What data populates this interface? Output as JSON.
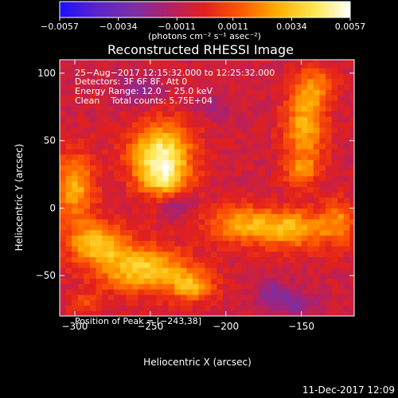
{
  "chart_data": {
    "type": "heatmap",
    "title": "Reconstructed RHESSI Image",
    "xlabel": "Heliocentric X (arcsec)",
    "ylabel": "Heliocentric Y (arcsec)",
    "xlim": [
      -310,
      -115
    ],
    "ylim": [
      -80,
      110
    ],
    "x_ticks": [
      -300,
      -250,
      -200,
      -150
    ],
    "y_ticks": [
      -50,
      0,
      50,
      100
    ],
    "x_tick_labels": [
      "−300",
      "−250",
      "−200",
      "−150"
    ],
    "y_tick_labels": [
      "−50",
      "0",
      "50",
      "100"
    ],
    "colorbar": {
      "min": -0.0057,
      "max": 0.0057,
      "tick_values": [
        -0.0057,
        -0.0034,
        -0.0011,
        0.0011,
        0.0034,
        0.0057
      ],
      "tick_labels": [
        "−0.0057",
        "−0.0034",
        "−0.0011",
        "0.0011",
        "0.0034",
        "0.0057"
      ],
      "units_label": "(photons cm⁻² s⁻¹ asec⁻²)",
      "colors": [
        "#1a10ff",
        "#5a22cc",
        "#7a2fa6",
        "#b0206a",
        "#e2201c",
        "#ff5a00",
        "#ffae00",
        "#ffe850",
        "#ffffff"
      ]
    },
    "info_lines": [
      "25−Aug−2017 12:15:32.000 to 12:25:32.000",
      "Detectors: 3F 6F 8F, Att 0",
      "Energy Range: 12.0 − 25.0 keV",
      "Clean    Total counts: 5.75E+04"
    ],
    "peak_text": "Position of Peak = [−243,38]",
    "peak_position": [
      -243,
      38
    ],
    "sources": [
      {
        "x": -243,
        "y": 38,
        "sx": 14,
        "sy": 17,
        "amp": 0.0057
      },
      {
        "x": -240,
        "y": 20,
        "sx": 10,
        "sy": 8,
        "amp": 0.0018
      },
      {
        "x": -148,
        "y": 60,
        "sx": 10,
        "sy": 20,
        "amp": 0.0034
      },
      {
        "x": -140,
        "y": 90,
        "sx": 9,
        "sy": 10,
        "amp": 0.0024
      },
      {
        "x": -150,
        "y": 28,
        "sx": 8,
        "sy": 8,
        "amp": 0.002
      },
      {
        "x": -300,
        "y": 15,
        "sx": 10,
        "sy": 18,
        "amp": 0.0034
      },
      {
        "x": -285,
        "y": -25,
        "sx": 14,
        "sy": 10,
        "amp": 0.0038
      },
      {
        "x": -255,
        "y": -45,
        "sx": 22,
        "sy": 12,
        "amp": 0.0042
      },
      {
        "x": -222,
        "y": -58,
        "sx": 10,
        "sy": 8,
        "amp": 0.003
      },
      {
        "x": -190,
        "y": -12,
        "sx": 16,
        "sy": 10,
        "amp": 0.0032
      },
      {
        "x": -155,
        "y": -15,
        "sx": 16,
        "sy": 10,
        "amp": 0.0036
      },
      {
        "x": -125,
        "y": -10,
        "sx": 8,
        "sy": 12,
        "amp": 0.0024
      },
      {
        "x": -295,
        "y": -70,
        "sx": 8,
        "sy": 6,
        "amp": 0.0014
      }
    ],
    "negative_sources": [
      {
        "x": -258,
        "y": 88,
        "sx": 10,
        "sy": 8,
        "amp": -0.0018
      },
      {
        "x": -232,
        "y": 2,
        "sx": 8,
        "sy": 6,
        "amp": -0.0016
      },
      {
        "x": -168,
        "y": -62,
        "sx": 8,
        "sy": 6,
        "amp": -0.002
      },
      {
        "x": -155,
        "y": -72,
        "sx": 10,
        "sy": 6,
        "amp": -0.0018
      },
      {
        "x": -208,
        "y": 75,
        "sx": 8,
        "sy": 6,
        "amp": -0.0012
      }
    ],
    "grid": false
  },
  "footer": {
    "timestamp": "11-Dec-2017 12:09"
  }
}
